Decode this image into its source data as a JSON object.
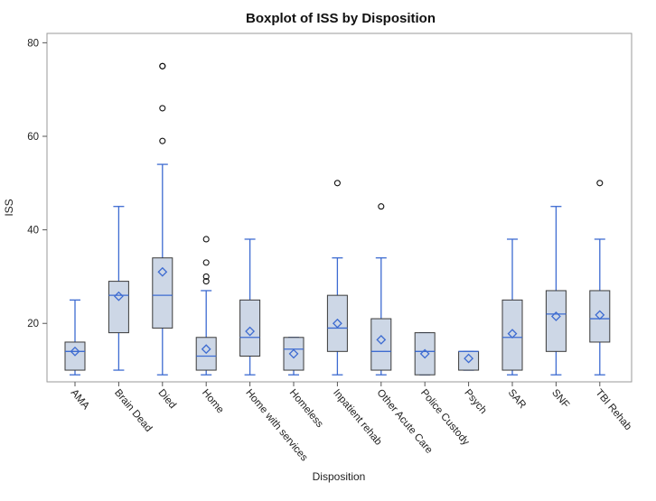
{
  "chart_data": {
    "type": "boxplot",
    "title": "Boxplot of ISS by Disposition",
    "xlabel": "Disposition",
    "ylabel": "ISS",
    "ylim": [
      7.5,
      82
    ],
    "yticks": [
      20,
      40,
      60,
      80
    ],
    "grid": false,
    "legend": "none",
    "colors": {
      "box_fill": "#cdd7e6",
      "box_stroke": "#3a3a3a",
      "whisker": "#3d6bd1",
      "mean_marker": "#3d6bd1",
      "outlier": "#111111"
    },
    "categories": [
      "AMA",
      "Brain Dead",
      "Died",
      "Home",
      "Home with services",
      "Homeless",
      "Inpatient rehab",
      "Other Acute Care",
      "Police Custody",
      "Psych",
      "SAR",
      "SNF",
      "TBI Rehab"
    ],
    "boxes": [
      {
        "category": "AMA",
        "min": 9,
        "q1": 10,
        "median": 14,
        "q3": 16,
        "max": 25,
        "mean": 14,
        "outliers": []
      },
      {
        "category": "Brain Dead",
        "min": 10,
        "q1": 18,
        "median": 26,
        "q3": 29,
        "max": 45,
        "mean": 25.8,
        "outliers": []
      },
      {
        "category": "Died",
        "min": 9,
        "q1": 19,
        "median": 26,
        "q3": 34,
        "max": 54,
        "mean": 31,
        "outliers": [
          59,
          66,
          75,
          75
        ]
      },
      {
        "category": "Home",
        "min": 9,
        "q1": 10,
        "median": 13,
        "q3": 17,
        "max": 27,
        "mean": 14.5,
        "outliers": [
          29,
          30,
          33,
          38
        ]
      },
      {
        "category": "Home with services",
        "min": 9,
        "q1": 13,
        "median": 17,
        "q3": 25,
        "max": 38,
        "mean": 18.3,
        "outliers": []
      },
      {
        "category": "Homeless",
        "min": 9,
        "q1": 10,
        "median": 14.5,
        "q3": 17,
        "max": 17,
        "mean": 13.5,
        "outliers": []
      },
      {
        "category": "Inpatient rehab",
        "min": 9,
        "q1": 14,
        "median": 19,
        "q3": 26,
        "max": 34,
        "mean": 20,
        "outliers": [
          50
        ]
      },
      {
        "category": "Other Acute Care",
        "min": 9,
        "q1": 10,
        "median": 14,
        "q3": 21,
        "max": 34,
        "mean": 16.5,
        "outliers": [
          45
        ]
      },
      {
        "category": "Police Custody",
        "min": 9,
        "q1": 9,
        "median": 14,
        "q3": 18,
        "max": 18,
        "mean": 13.5,
        "outliers": []
      },
      {
        "category": "Psych",
        "min": 10,
        "q1": 10,
        "median": 14,
        "q3": 14,
        "max": 14,
        "mean": 12.5,
        "outliers": []
      },
      {
        "category": "SAR",
        "min": 9,
        "q1": 10,
        "median": 17,
        "q3": 25,
        "max": 38,
        "mean": 17.8,
        "outliers": []
      },
      {
        "category": "SNF",
        "min": 9,
        "q1": 14,
        "median": 22,
        "q3": 27,
        "max": 45,
        "mean": 21.5,
        "outliers": []
      },
      {
        "category": "TBI Rehab",
        "min": 9,
        "q1": 16,
        "median": 21,
        "q3": 27,
        "max": 38,
        "mean": 21.8,
        "outliers": [
          50
        ]
      }
    ]
  }
}
